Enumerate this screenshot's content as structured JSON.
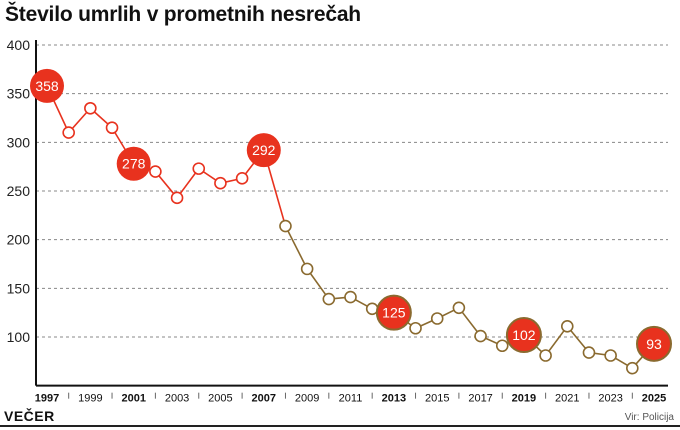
{
  "chart_data": {
    "type": "line",
    "title": "Število umrlih v prometnih nesrečah",
    "xlabel": "",
    "ylabel": "",
    "ylim": [
      50,
      400
    ],
    "yticks": [
      100,
      150,
      200,
      250,
      300,
      350,
      400
    ],
    "grid": true,
    "x": [
      1997,
      1998,
      1999,
      2000,
      2001,
      2002,
      2003,
      2004,
      2005,
      2006,
      2007,
      2008,
      2009,
      2010,
      2011,
      2012,
      2013,
      2014,
      2015,
      2016,
      2017,
      2018,
      2019,
      2020,
      2021,
      2022,
      2023,
      2024,
      2025
    ],
    "xtick_labels": [
      "1997",
      "1999",
      "2001",
      "2003",
      "2005",
      "2007",
      "2009",
      "2011",
      "2013",
      "2015",
      "2017",
      "2019",
      "2021",
      "2023",
      "2025"
    ],
    "bold_years": [
      1997,
      2001,
      2007,
      2013,
      2019,
      2025
    ],
    "series": [
      {
        "values": [
          358,
          310,
          335,
          315,
          278,
          270,
          243,
          273,
          258,
          263,
          292,
          214,
          170,
          139,
          141,
          129,
          125,
          109,
          119,
          130,
          101,
          91,
          102,
          81,
          111,
          84,
          81,
          68,
          93
        ]
      }
    ],
    "highlighted": [
      1997,
      2001,
      2007,
      2013,
      2019,
      2025
    ],
    "colors": {
      "early_line": "#e8321e",
      "late_line": "#8a6a2f",
      "bubble": "#e8321e",
      "grid": "#888888"
    }
  },
  "footer": {
    "logo": "VEČER",
    "source": "Vir: Policija"
  }
}
